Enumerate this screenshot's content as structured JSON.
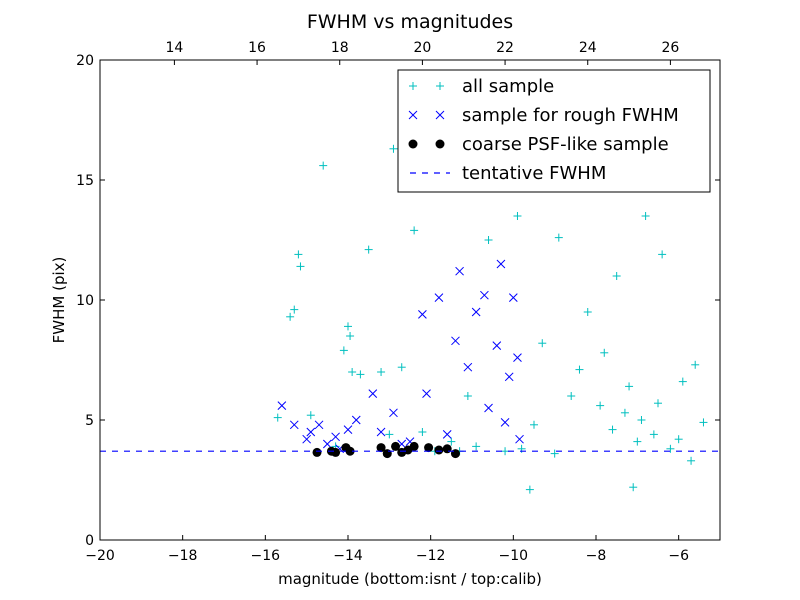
{
  "chart_data": {
    "type": "scatter",
    "title": "FWHM vs magnitudes",
    "xlabel": "magnitude (bottom:isnt / top:calib)",
    "ylabel": "FWHM (pix)",
    "xlim": [
      -20,
      -5
    ],
    "ylim": [
      0,
      20
    ],
    "x_ticks": [
      -20,
      -18,
      -16,
      -14,
      -12,
      -10,
      -8,
      -6
    ],
    "x_tick_labels": [
      "−20",
      "−18",
      "−16",
      "−14",
      "−12",
      "−10",
      "−8",
      "−6"
    ],
    "y_ticks": [
      0,
      5,
      10,
      15,
      20
    ],
    "y_tick_labels": [
      "0",
      "5",
      "10",
      "15",
      "20"
    ],
    "top_axis": {
      "offset_from_bottom": 32.2,
      "ticks": [
        14,
        16,
        18,
        20,
        22,
        24,
        26
      ],
      "tick_labels": [
        "14",
        "16",
        "18",
        "20",
        "22",
        "24",
        "26"
      ]
    },
    "legend_position": "top-right",
    "series": [
      {
        "name": "all sample",
        "marker": "+",
        "color": "#00bfbf",
        "points": [
          [
            -15.7,
            5.1
          ],
          [
            -15.4,
            9.3
          ],
          [
            -15.3,
            9.6
          ],
          [
            -15.2,
            11.9
          ],
          [
            -15.15,
            11.4
          ],
          [
            -14.9,
            5.2
          ],
          [
            -14.6,
            15.6
          ],
          [
            -14.3,
            3.9
          ],
          [
            -14.1,
            7.9
          ],
          [
            -14.0,
            8.9
          ],
          [
            -13.95,
            8.5
          ],
          [
            -13.9,
            7.0
          ],
          [
            -13.7,
            6.9
          ],
          [
            -13.5,
            12.1
          ],
          [
            -13.2,
            7.0
          ],
          [
            -13.0,
            4.4
          ],
          [
            -12.9,
            16.3
          ],
          [
            -12.7,
            7.2
          ],
          [
            -12.4,
            12.9
          ],
          [
            -12.2,
            4.5
          ],
          [
            -11.9,
            3.7
          ],
          [
            -11.6,
            17.4
          ],
          [
            -11.5,
            4.1
          ],
          [
            -11.3,
            3.7
          ],
          [
            -11.1,
            6.0
          ],
          [
            -10.9,
            3.9
          ],
          [
            -10.6,
            12.5
          ],
          [
            -10.4,
            18.9
          ],
          [
            -10.2,
            3.7
          ],
          [
            -9.9,
            13.5
          ],
          [
            -9.6,
            2.1
          ],
          [
            -9.8,
            3.8
          ],
          [
            -9.5,
            4.8
          ],
          [
            -9.3,
            8.2
          ],
          [
            -9.0,
            3.6
          ],
          [
            -8.9,
            12.6
          ],
          [
            -8.8,
            16.5
          ],
          [
            -8.6,
            6.0
          ],
          [
            -8.4,
            7.1
          ],
          [
            -8.2,
            9.5
          ],
          [
            -8.0,
            18.1
          ],
          [
            -7.9,
            5.6
          ],
          [
            -7.8,
            7.8
          ],
          [
            -7.6,
            4.6
          ],
          [
            -7.5,
            11.0
          ],
          [
            -7.3,
            5.3
          ],
          [
            -7.2,
            6.4
          ],
          [
            -7.1,
            2.2
          ],
          [
            -7.0,
            4.1
          ],
          [
            -6.9,
            5.0
          ],
          [
            -6.8,
            13.5
          ],
          [
            -6.6,
            4.4
          ],
          [
            -6.5,
            5.7
          ],
          [
            -6.4,
            11.9
          ],
          [
            -6.2,
            3.8
          ],
          [
            -6.0,
            4.2
          ],
          [
            -5.9,
            6.6
          ],
          [
            -5.7,
            3.3
          ],
          [
            -5.6,
            7.3
          ],
          [
            -5.4,
            4.9
          ]
        ]
      },
      {
        "name": "sample for rough FWHM",
        "marker": "x",
        "color": "#0000ff",
        "points": [
          [
            -15.6,
            5.6
          ],
          [
            -15.3,
            4.8
          ],
          [
            -15.0,
            4.2
          ],
          [
            -14.9,
            4.5
          ],
          [
            -14.7,
            4.8
          ],
          [
            -14.5,
            4.0
          ],
          [
            -14.3,
            4.3
          ],
          [
            -14.2,
            3.8
          ],
          [
            -14.0,
            4.6
          ],
          [
            -13.8,
            5.0
          ],
          [
            -13.4,
            6.1
          ],
          [
            -13.2,
            4.5
          ],
          [
            -12.9,
            5.3
          ],
          [
            -12.7,
            4.0
          ],
          [
            -12.5,
            4.1
          ],
          [
            -12.2,
            9.4
          ],
          [
            -12.1,
            6.1
          ],
          [
            -11.8,
            10.1
          ],
          [
            -11.6,
            4.4
          ],
          [
            -11.4,
            8.3
          ],
          [
            -11.3,
            11.2
          ],
          [
            -11.1,
            7.2
          ],
          [
            -10.9,
            9.5
          ],
          [
            -10.7,
            10.2
          ],
          [
            -10.6,
            5.5
          ],
          [
            -10.4,
            8.1
          ],
          [
            -10.3,
            11.5
          ],
          [
            -10.2,
            4.9
          ],
          [
            -10.1,
            6.8
          ],
          [
            -10.0,
            10.1
          ],
          [
            -9.9,
            7.6
          ],
          [
            -9.85,
            4.2
          ]
        ]
      },
      {
        "name": "coarse PSF-like sample",
        "marker": "o",
        "color": "#000000",
        "points": [
          [
            -14.75,
            3.65
          ],
          [
            -14.4,
            3.7
          ],
          [
            -14.3,
            3.65
          ],
          [
            -14.05,
            3.85
          ],
          [
            -13.95,
            3.7
          ],
          [
            -13.2,
            3.85
          ],
          [
            -13.05,
            3.6
          ],
          [
            -12.85,
            3.9
          ],
          [
            -12.7,
            3.65
          ],
          [
            -12.55,
            3.75
          ],
          [
            -12.4,
            3.9
          ],
          [
            -12.05,
            3.85
          ],
          [
            -11.8,
            3.75
          ],
          [
            -11.6,
            3.8
          ],
          [
            -11.4,
            3.6
          ]
        ]
      },
      {
        "name": "tentative FWHM",
        "marker": "dashed-line",
        "color": "#0000ff",
        "y": 3.7
      }
    ]
  }
}
